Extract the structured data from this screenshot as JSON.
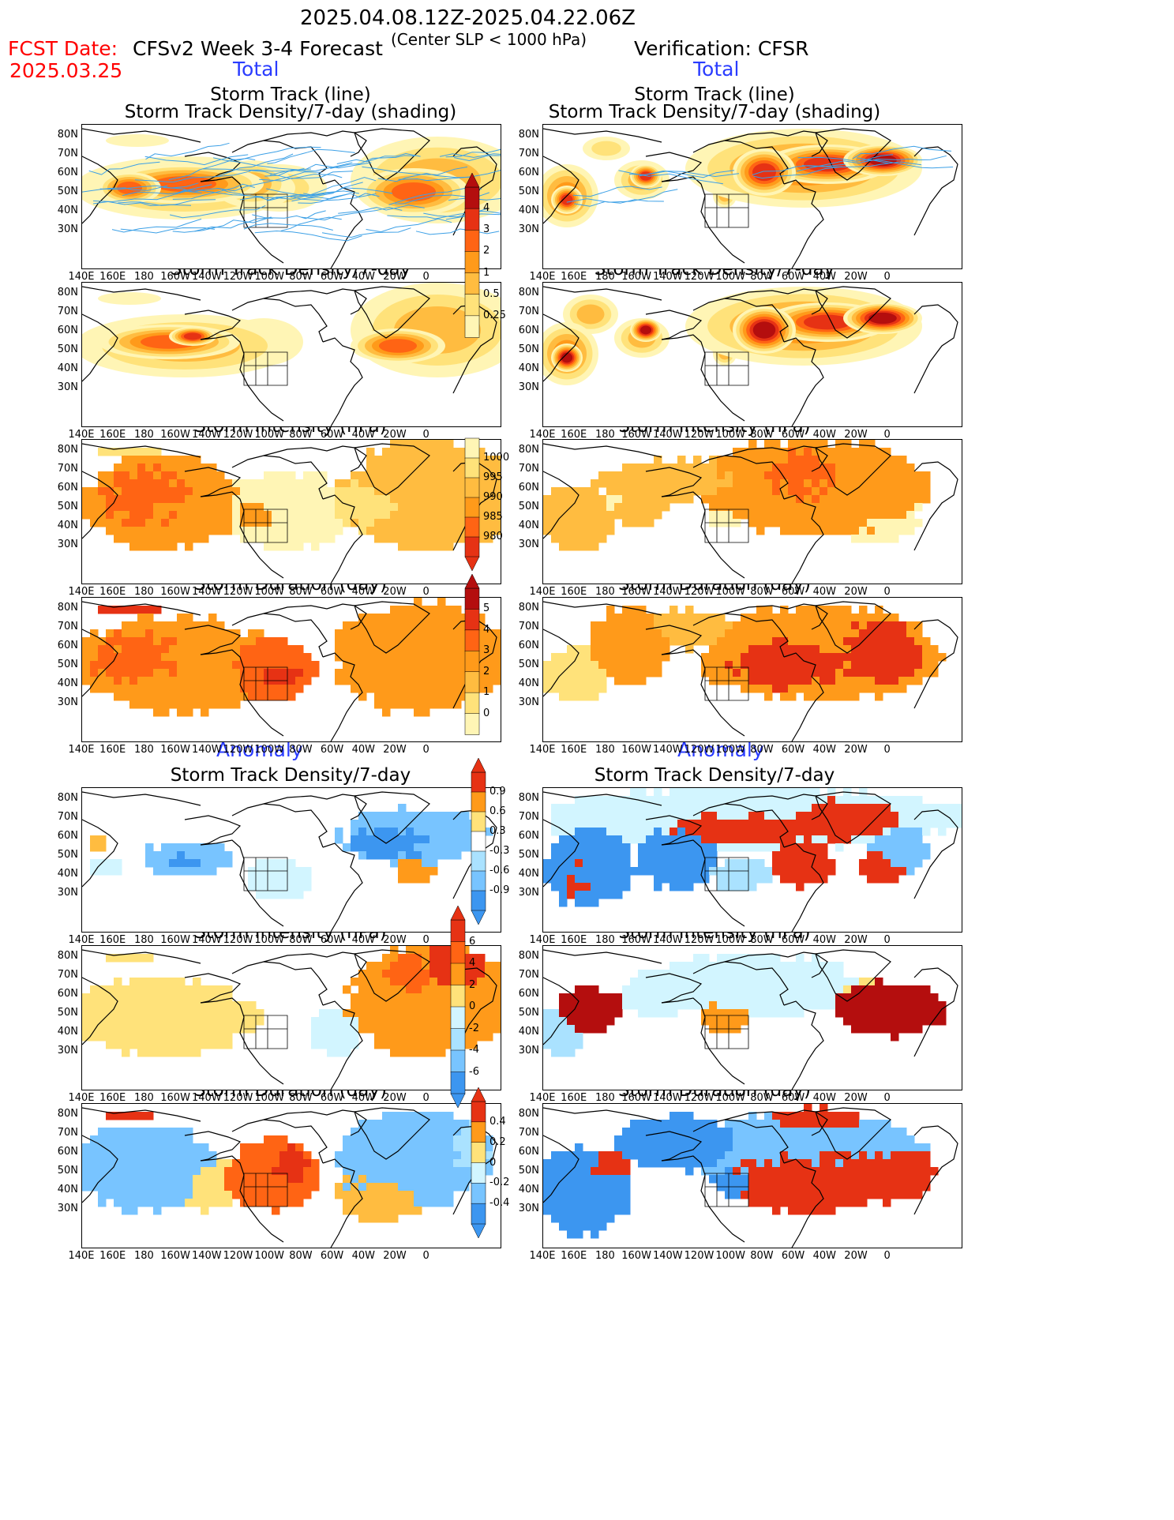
{
  "header": {
    "date_range": "2025.04.08.12Z-2025.04.22.06Z",
    "subtitle": "(Center SLP < 1000 hPa)",
    "fcst_label": "FCST Date:",
    "fcst_date": "2025.03.25",
    "left_title": "CFSv2 Week 3-4 Forecast",
    "right_title": "Verification: CFSR"
  },
  "sections": {
    "total": "Total",
    "anomaly": "Anomaly"
  },
  "panel_titles": {
    "track_line": "Storm Track (line)",
    "track_shading": "Storm Track Density/7-day (shading)",
    "density": "Storm Track Density/7-day",
    "intensity": "Storm Intensity (hPa)",
    "duration": "Storm Duration (day)"
  },
  "axes": {
    "lat_labels": [
      "80N",
      "70N",
      "60N",
      "50N",
      "40N",
      "30N"
    ],
    "lon_labels": [
      "140E",
      "160E",
      "180",
      "160W",
      "140W",
      "120W",
      "100W",
      "80W",
      "60W",
      "40W",
      "20W",
      "0"
    ]
  },
  "colorbars": {
    "density_total": [
      "4",
      "3",
      "2",
      "1",
      "0.5",
      "0.25"
    ],
    "intensity_total": [
      "1000",
      "995",
      "990",
      "985",
      "980"
    ],
    "duration_total": [
      "5",
      "4",
      "3",
      "2",
      "1",
      "0"
    ],
    "density_anom": [
      "0.9",
      "0.6",
      "0.3",
      "-0.3",
      "-0.6",
      "-0.9"
    ],
    "intensity_anom": [
      "6",
      "4",
      "2",
      "0",
      "-2",
      "-4",
      "-6"
    ],
    "duration_anom": [
      "0.4",
      "0.2",
      "0",
      "-0.2",
      "-0.4"
    ]
  },
  "colors": {
    "pos": [
      "#fff5b5",
      "#ffe27a",
      "#ffbc40",
      "#ff9a1a",
      "#ff6414",
      "#e63214",
      "#b40e0e"
    ],
    "neg": [
      "#d2f5ff",
      "#aae2ff",
      "#78c4ff",
      "#3c96f0",
      "#1464d2"
    ],
    "track_line": "#3ca0e6"
  }
}
